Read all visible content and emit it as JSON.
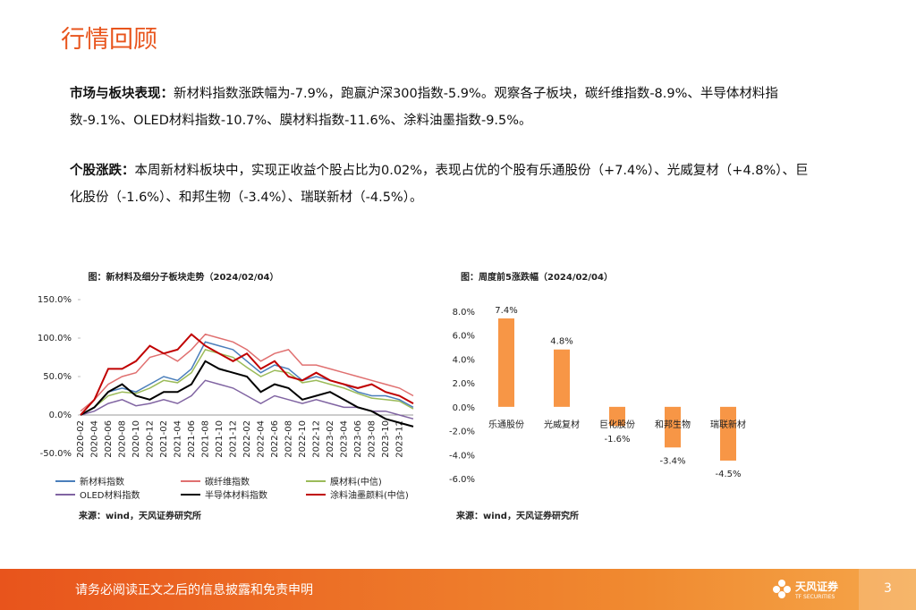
{
  "header": {
    "title": "行情回顾"
  },
  "paragraphs": [
    {
      "lead": "市场与板块表现：",
      "text": "新材料指数涨跌幅为-7.9%，跑赢沪深300指数-5.9%。观察各子板块，碳纤维指数-8.9%、半导体材料指数-9.1%、OLED材料指数-10.7%、膜材料指数-11.6%、涂料油墨指数-9.5%。"
    },
    {
      "lead": "个股涨跌：",
      "text": "本周新材料板块中，实现正收益个股占比为0.02%，表现占优的个股有乐通股份（+7.4%）、光威复材（+4.8%）、巨化股份（-1.6%）、和邦生物（-3.4%）、瑞联新材（-4.5%）。"
    }
  ],
  "chart_data": [
    {
      "type": "line",
      "title": "图：新材料及细分子板块走势（2024/02/04）",
      "source": "来源：wind，天风证券研究所",
      "categories": [
        "2020-02",
        "2020-04",
        "2020-06",
        "2020-08",
        "2020-10",
        "2020-12",
        "2021-02",
        "2021-04",
        "2021-06",
        "2021-08",
        "2021-10",
        "2021-12",
        "2022-02",
        "2022-04",
        "2022-06",
        "2022-08",
        "2022-10",
        "2022-12",
        "2023-02",
        "2023-04",
        "2023-06",
        "2023-08",
        "2023-10",
        "2023-12",
        null
      ],
      "ylim": [
        -50,
        150
      ],
      "yticks": [
        {
          "value": -50,
          "label": "-50.0%"
        },
        {
          "value": 0,
          "label": "0.0%"
        },
        {
          "value": 50,
          "label": "50.0%"
        },
        {
          "value": 100,
          "label": "100.0%"
        },
        {
          "value": 150,
          "label": "150.0%"
        }
      ],
      "series": [
        {
          "name": "新材料指数",
          "color": "#4a7ebb",
          "values": [
            0,
            10,
            30,
            35,
            30,
            40,
            50,
            45,
            60,
            95,
            90,
            85,
            70,
            55,
            65,
            60,
            45,
            50,
            45,
            40,
            30,
            25,
            25,
            20,
            10
          ]
        },
        {
          "name": "碳纤维指数",
          "color": "#e07070",
          "values": [
            5,
            20,
            40,
            50,
            55,
            75,
            80,
            70,
            85,
            105,
            100,
            95,
            85,
            70,
            80,
            85,
            65,
            65,
            60,
            55,
            50,
            45,
            40,
            35,
            25
          ]
        },
        {
          "name": "膜材料(中信)",
          "color": "#9bbb59",
          "values": [
            0,
            10,
            25,
            30,
            28,
            35,
            45,
            42,
            55,
            85,
            80,
            75,
            62,
            50,
            58,
            55,
            42,
            45,
            40,
            35,
            28,
            22,
            20,
            18,
            8
          ]
        },
        {
          "name": "OLED材料指数",
          "color": "#8064a2",
          "values": [
            0,
            5,
            15,
            20,
            12,
            15,
            20,
            15,
            25,
            45,
            40,
            35,
            25,
            15,
            25,
            20,
            15,
            20,
            15,
            10,
            10,
            5,
            5,
            0,
            -5
          ]
        },
        {
          "name": "半导体材料指数",
          "color": "#000000",
          "values": [
            0,
            10,
            30,
            40,
            25,
            20,
            30,
            30,
            40,
            70,
            60,
            55,
            50,
            30,
            40,
            35,
            20,
            25,
            30,
            20,
            10,
            5,
            -5,
            -10,
            -15
          ]
        },
        {
          "name": "涂料油墨颜料(中信)",
          "color": "#c00000",
          "values": [
            0,
            20,
            60,
            60,
            70,
            90,
            80,
            85,
            105,
            90,
            80,
            70,
            80,
            60,
            70,
            50,
            45,
            55,
            45,
            40,
            35,
            40,
            30,
            25,
            15
          ]
        }
      ]
    },
    {
      "type": "bar",
      "title": "图：周度前5涨跌幅（2024/02/04）",
      "source": "来源：wind，天风证券研究所",
      "categories": [
        "乐通股份",
        "光威复材",
        "巨化股份",
        "和邦生物",
        "瑞联新材"
      ],
      "values": [
        7.4,
        4.8,
        -1.6,
        -3.4,
        -4.5
      ],
      "value_labels": [
        "7.4%",
        "4.8%",
        "-1.6%",
        "-3.4%",
        "-4.5%"
      ],
      "color": "#f79646",
      "ylim": [
        -6,
        8
      ],
      "yticks": [
        {
          "value": -6,
          "label": "-6.0%"
        },
        {
          "value": -4,
          "label": "-4.0%"
        },
        {
          "value": -2,
          "label": "-2.0%"
        },
        {
          "value": 0,
          "label": "0.0%"
        },
        {
          "value": 2,
          "label": "2.0%"
        },
        {
          "value": 4,
          "label": "4.0%"
        },
        {
          "value": 6,
          "label": "6.0%"
        },
        {
          "value": 8,
          "label": "8.0%"
        }
      ]
    }
  ],
  "footer": {
    "disclaimer": "请务必阅读正文之后的信息披露和免责申明",
    "brand": "天风证券",
    "brand_en": "TF SECURITIES",
    "page": 3
  }
}
